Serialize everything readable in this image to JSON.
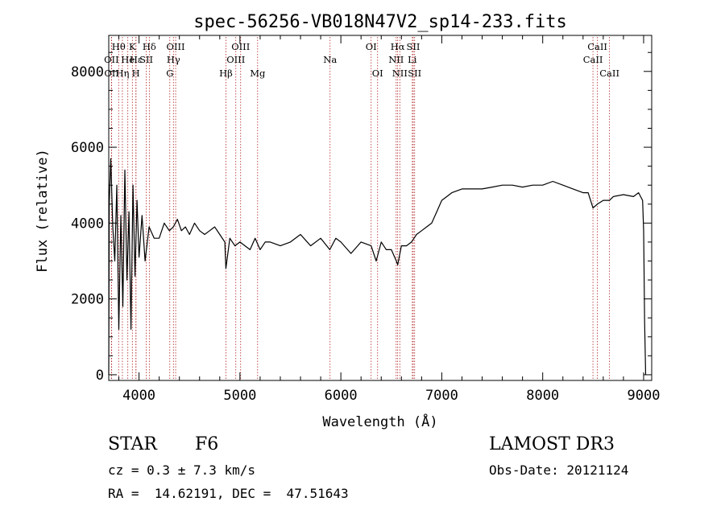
{
  "chart_data": {
    "type": "line",
    "title": "spec-56256-VB018N47V2_sp14-233.fits",
    "xlabel": "Wavelength (Å)",
    "ylabel": "Flux (relative)",
    "xlim": [
      3700,
      9080
    ],
    "ylim": [
      -150,
      8950
    ],
    "x_ticks": [
      4000,
      5000,
      6000,
      7000,
      8000,
      9000
    ],
    "x_tick_labels": [
      "4000",
      "5000",
      "6000",
      "7000",
      "8000",
      "9000"
    ],
    "y_ticks": [
      0,
      2000,
      4000,
      6000,
      8000
    ],
    "y_tick_labels": [
      "0",
      "2000",
      "4000",
      "6000",
      "8000"
    ],
    "grid": false,
    "series": [
      {
        "color": "#000000",
        "x": [
          3700,
          3705,
          3720,
          3740,
          3760,
          3780,
          3800,
          3820,
          3840,
          3860,
          3880,
          3900,
          3920,
          3940,
          3960,
          3980,
          4000,
          4030,
          4060,
          4100,
          4150,
          4200,
          4250,
          4300,
          4340,
          4380,
          4420,
          4460,
          4500,
          4550,
          4600,
          4650,
          4700,
          4750,
          4800,
          4850,
          4861,
          4900,
          4950,
          5000,
          5050,
          5100,
          5150,
          5200,
          5250,
          5300,
          5400,
          5500,
          5600,
          5700,
          5800,
          5890,
          5950,
          6000,
          6100,
          6200,
          6300,
          6350,
          6400,
          6450,
          6500,
          6550,
          6563,
          6600,
          6650,
          6700,
          6750,
          6800,
          6850,
          6900,
          6950,
          7000,
          7050,
          7100,
          7200,
          7300,
          7400,
          7500,
          7600,
          7700,
          7800,
          7900,
          8000,
          8100,
          8200,
          8300,
          8400,
          8450,
          8498,
          8542,
          8600,
          8662,
          8700,
          8800,
          8900,
          8950,
          8990,
          9000,
          9010,
          9020
        ],
        "y": [
          0,
          4500,
          5700,
          3900,
          3000,
          5000,
          1200,
          4200,
          1800,
          5400,
          2500,
          4300,
          1200,
          5000,
          2600,
          4600,
          3100,
          4200,
          3000,
          3900,
          3600,
          3600,
          4000,
          3800,
          3900,
          4100,
          3800,
          3900,
          3700,
          4000,
          3800,
          3700,
          3800,
          3900,
          3700,
          3500,
          2800,
          3600,
          3400,
          3500,
          3400,
          3300,
          3600,
          3300,
          3500,
          3500,
          3400,
          3500,
          3700,
          3400,
          3600,
          3300,
          3600,
          3500,
          3200,
          3500,
          3400,
          3000,
          3500,
          3300,
          3300,
          3000,
          2900,
          3400,
          3400,
          3500,
          3700,
          3800,
          3900,
          4000,
          4300,
          4600,
          4700,
          4800,
          4900,
          4900,
          4900,
          4950,
          5000,
          5000,
          4950,
          5000,
          5000,
          5100,
          5000,
          4900,
          4800,
          4800,
          4400,
          4500,
          4600,
          4600,
          4700,
          4750,
          4700,
          4800,
          4600,
          3800,
          1400,
          0
        ]
      }
    ],
    "line_markers": [
      {
        "label": "Hθ",
        "x": 3798,
        "row": 1
      },
      {
        "label": "OII",
        "x": 3727,
        "row": 2
      },
      {
        "label": "OII",
        "x": 3729,
        "row": 3
      },
      {
        "label": "He",
        "x": 3889,
        "row": 2
      },
      {
        "label": "Hη",
        "x": 3835,
        "row": 3
      },
      {
        "label": "K",
        "x": 3934,
        "row": 1
      },
      {
        "label": "H",
        "x": 3969,
        "row": 3
      },
      {
        "label": "Hε",
        "x": 3970,
        "row": 2
      },
      {
        "label": "Hδ",
        "x": 4102,
        "row": 1
      },
      {
        "label": "SII",
        "x": 4072,
        "row": 2
      },
      {
        "label": "OIII",
        "x": 4363,
        "row": 1
      },
      {
        "label": "Hγ",
        "x": 4341,
        "row": 2
      },
      {
        "label": "G",
        "x": 4305,
        "row": 3
      },
      {
        "label": "Hβ",
        "x": 4861,
        "row": 3
      },
      {
        "label": "OIII",
        "x": 5007,
        "row": 1
      },
      {
        "label": "OIII",
        "x": 4959,
        "row": 2
      },
      {
        "label": "Mg",
        "x": 5175,
        "row": 3
      },
      {
        "label": "Na",
        "x": 5893,
        "row": 2
      },
      {
        "label": "OI",
        "x": 6300,
        "row": 1
      },
      {
        "label": "OI",
        "x": 6364,
        "row": 3
      },
      {
        "label": "Hα",
        "x": 6563,
        "row": 1
      },
      {
        "label": "SII",
        "x": 6717,
        "row": 1
      },
      {
        "label": "NII",
        "x": 6548,
        "row": 2
      },
      {
        "label": "Li",
        "x": 6708,
        "row": 2
      },
      {
        "label": "NII",
        "x": 6584,
        "row": 3
      },
      {
        "label": "SII",
        "x": 6731,
        "row": 3
      },
      {
        "label": "CaII",
        "x": 8542,
        "row": 1
      },
      {
        "label": "CaII",
        "x": 8498,
        "row": 2
      },
      {
        "label": "CaII",
        "x": 8662,
        "row": 3
      }
    ]
  },
  "info": {
    "class_label": "STAR",
    "subclass_label": "F6",
    "cz_text": "cz = 0.3 ± 7.3 km/s",
    "coords_text": "RA =  14.62191, DEC =  47.51643",
    "survey_text": "LAMOST DR3",
    "obsdate_text": "Obs-Date: 20121124"
  }
}
